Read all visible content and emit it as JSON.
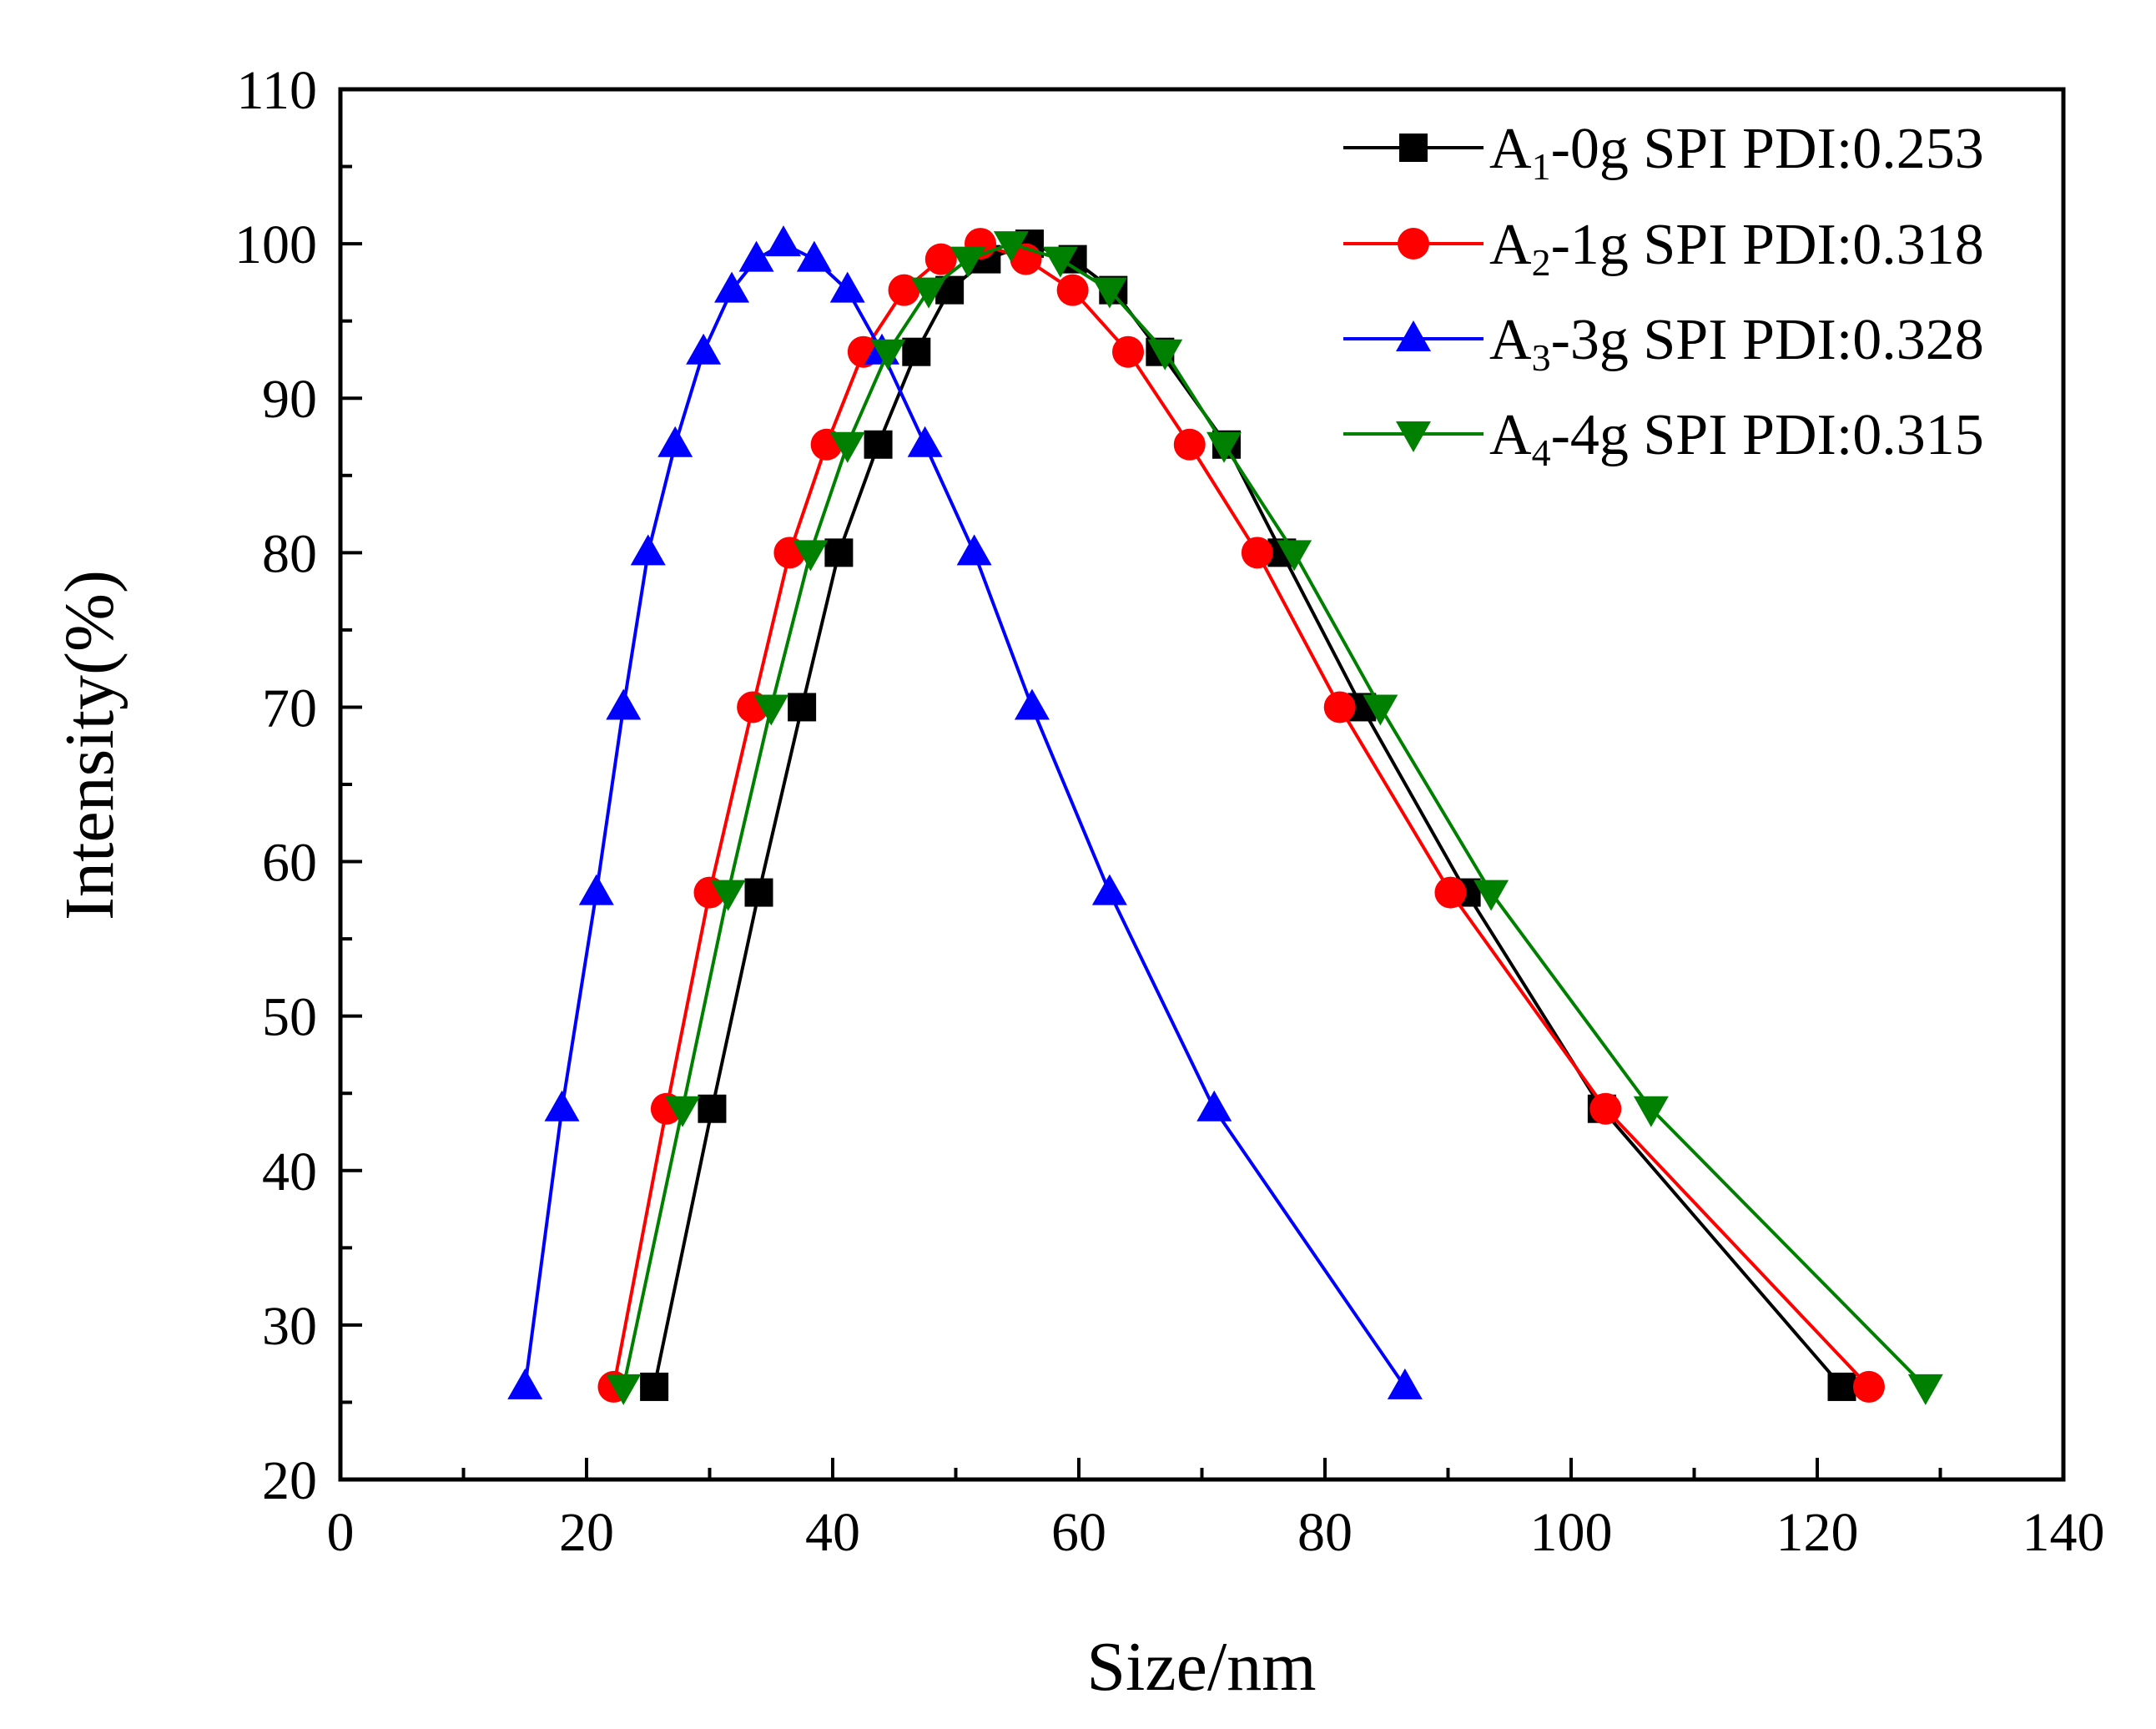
{
  "chart_data": {
    "type": "line",
    "title": "",
    "xlabel": "Size/nm",
    "ylabel": "Intensity(%)",
    "xlim": [
      0,
      140
    ],
    "ylim": [
      20,
      110
    ],
    "xticks": [
      0,
      20,
      40,
      60,
      80,
      100,
      120,
      140
    ],
    "yticks": [
      20,
      30,
      40,
      50,
      60,
      70,
      80,
      90,
      100,
      110
    ],
    "xtick_labels": [
      "0",
      "20",
      "40",
      "60",
      "80",
      "100",
      "120",
      "140"
    ],
    "ytick_labels": [
      "20",
      "30",
      "40",
      "50",
      "60",
      "70",
      "80",
      "90",
      "100",
      "110"
    ],
    "grid": false,
    "legend_position": "top-right",
    "series": [
      {
        "name": "A1-0g SPI PDI:0.253",
        "label_main": "A",
        "label_sub": "1",
        "label_rest": "-0g SPI PDI:0.253",
        "color": "#000000",
        "marker": "square",
        "x": [
          25.5,
          30.2,
          34.0,
          37.5,
          40.5,
          43.7,
          46.8,
          49.5,
          52.5,
          56.0,
          59.5,
          62.8,
          66.6,
          72.0,
          76.5,
          83.0,
          91.5,
          102.5,
          122.0
        ],
        "y": [
          26,
          44,
          58,
          70,
          80,
          87,
          93,
          97,
          99,
          100,
          99,
          97,
          93,
          87,
          80,
          70,
          58,
          44,
          26
        ]
      },
      {
        "name": "A2-1g SPI PDI:0.318",
        "label_main": "A",
        "label_sub": "2",
        "label_rest": "-1g SPI PDI:0.318",
        "color": "#ff0000",
        "marker": "circle",
        "x": [
          22.2,
          26.5,
          30.0,
          33.5,
          36.5,
          39.5,
          42.5,
          45.8,
          48.8,
          52.0,
          55.7,
          59.5,
          64.0,
          69.0,
          74.5,
          81.2,
          90.2,
          102.8,
          124.2
        ],
        "y": [
          26,
          44,
          58,
          70,
          80,
          87,
          93,
          97,
          99,
          100,
          99,
          97,
          93,
          87,
          80,
          70,
          58,
          44,
          26
        ]
      },
      {
        "name": "A3-3g SPI PDI:0.328",
        "label_main": "A",
        "label_sub": "3",
        "label_rest": "-3g SPI PDI:0.328",
        "color": "#0000ff",
        "marker": "triangle-up",
        "x": [
          15.0,
          18.0,
          20.8,
          23.0,
          25.0,
          27.2,
          29.5,
          31.8,
          33.8,
          36.0,
          38.5,
          41.2,
          44.0,
          47.5,
          51.5,
          56.2,
          62.5,
          71.0,
          86.5
        ],
        "y": [
          26,
          44,
          58,
          70,
          80,
          87,
          93,
          97,
          99,
          100,
          99,
          97,
          93,
          87,
          80,
          70,
          58,
          44,
          26
        ]
      },
      {
        "name": "A4-4g SPI PDI:0.315",
        "label_main": "A",
        "label_sub": "4",
        "label_rest": "-4g SPI PDI:0.315",
        "color": "#008000",
        "marker": "triangle-down",
        "x": [
          23.0,
          27.8,
          31.5,
          35.0,
          38.2,
          41.2,
          44.5,
          47.8,
          51.0,
          54.5,
          58.5,
          62.5,
          67.0,
          71.8,
          77.5,
          84.5,
          93.5,
          106.5,
          128.8
        ],
        "y": [
          26,
          44,
          58,
          70,
          80,
          87,
          93,
          97,
          99,
          100,
          99,
          97,
          93,
          87,
          80,
          70,
          58,
          44,
          26
        ]
      }
    ]
  }
}
